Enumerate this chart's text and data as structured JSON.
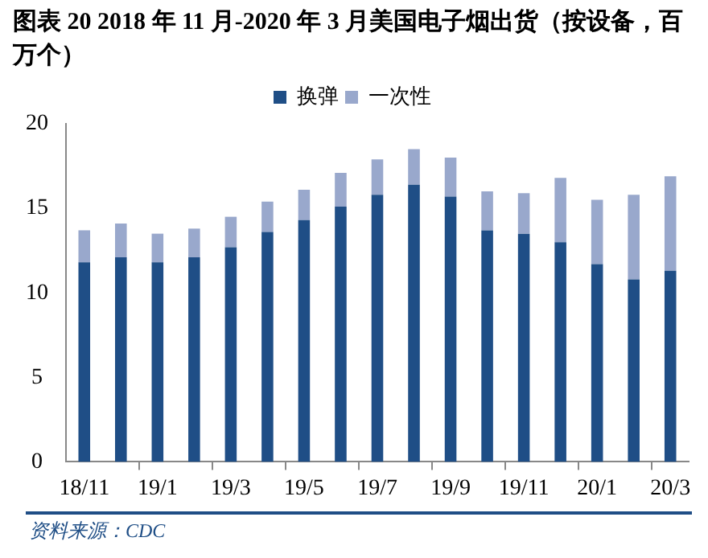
{
  "chart_data": {
    "type": "bar",
    "title": "图表 20  2018 年 11 月-2020 年 3 月美国电子烟出货（按设备，百万个）",
    "categories": [
      "18/11",
      null,
      "19/1",
      null,
      "19/3",
      null,
      "19/5",
      null,
      "19/7",
      null,
      "19/9",
      null,
      "19/11",
      null,
      "20/1",
      null,
      "20/3"
    ],
    "series": [
      {
        "name": "换弹",
        "color": "#1f4e86",
        "values": [
          11.8,
          12.1,
          11.8,
          12.1,
          12.7,
          13.6,
          14.3,
          15.1,
          15.8,
          16.4,
          15.7,
          13.7,
          13.5,
          13.0,
          11.7,
          10.8,
          11.3
        ]
      },
      {
        "name": "一次性",
        "color": "#99a8cc",
        "values": [
          1.9,
          2.0,
          1.7,
          1.7,
          1.8,
          1.8,
          1.8,
          2.0,
          2.1,
          2.1,
          2.3,
          2.3,
          2.4,
          3.8,
          3.8,
          5.0,
          5.6
        ]
      }
    ],
    "stacked": true,
    "ylim": [
      0,
      20
    ],
    "yticks": [
      0,
      5,
      10,
      15,
      20
    ],
    "grid": false,
    "legend": "top right",
    "annotations": [
      "资料来源：CDC"
    ]
  }
}
